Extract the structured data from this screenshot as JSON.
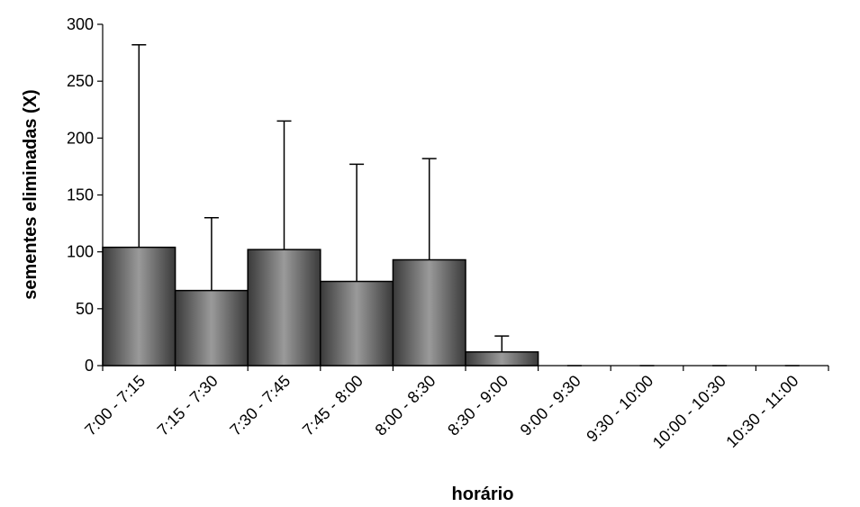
{
  "chart_data": {
    "type": "bar",
    "title": "",
    "xlabel": "horário",
    "ylabel": "sementes eliminadas (X)",
    "ylim": [
      0,
      300
    ],
    "yticks": [
      0,
      50,
      100,
      150,
      200,
      250,
      300
    ],
    "grid": false,
    "legend": "none",
    "categories": [
      "7:00 - 7:15",
      "7:15 - 7:30",
      "7:30 - 7:45",
      "7:45 - 8:00",
      "8:00 - 8:30",
      "8:30 - 9:00",
      "9:00 - 9:30",
      "9:30 - 10:00",
      "10:00 - 10:30",
      "10:30 - 11:00"
    ],
    "series": [
      {
        "values": [
          104,
          66,
          102,
          74,
          93,
          12,
          0,
          0,
          0,
          0
        ],
        "error_upper": [
          178,
          64,
          113,
          103,
          89,
          14,
          0,
          0,
          0,
          0
        ]
      }
    ],
    "colors": {
      "bar_dark": "#3a3a3a",
      "bar_light": "#9a9a9a",
      "axis": "#000000"
    }
  }
}
